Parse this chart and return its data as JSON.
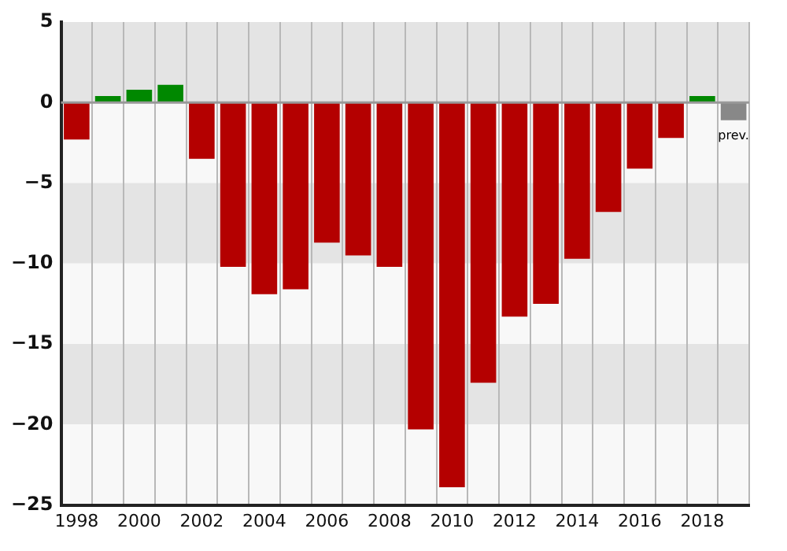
{
  "chart_data": {
    "type": "bar",
    "categories": [
      "1998",
      null,
      "2000",
      null,
      "2002",
      null,
      "2004",
      null,
      "2006",
      null,
      "2008",
      null,
      "2010",
      null,
      "2012",
      null,
      "2014",
      null,
      "2016",
      null,
      "2018",
      null
    ],
    "values": [
      -2.3,
      0.4,
      0.8,
      1.1,
      -3.5,
      -10.2,
      -11.9,
      -11.6,
      -8.7,
      -9.5,
      -10.2,
      -20.3,
      -23.9,
      -17.4,
      -13.3,
      -12.5,
      -9.7,
      -6.8,
      -4.1,
      -2.2,
      0.4,
      -1.1
    ],
    "colors": [
      "#b40000",
      "#008800",
      "#008800",
      "#008800",
      "#b40000",
      "#b40000",
      "#b40000",
      "#b40000",
      "#b40000",
      "#b40000",
      "#b40000",
      "#b40000",
      "#b40000",
      "#b40000",
      "#b40000",
      "#b40000",
      "#b40000",
      "#b40000",
      "#b40000",
      "#b40000",
      "#008800",
      "#888888"
    ],
    "ylim": [
      -25,
      5
    ],
    "yticks": [
      5,
      0,
      {
        "value": -5,
        "label": "−5"
      },
      {
        "value": -10,
        "label": "−10"
      },
      {
        "value": -15,
        "label": "−15"
      },
      {
        "value": -20,
        "label": "−20"
      },
      {
        "value": -25,
        "label": "−25"
      }
    ],
    "ref_lines": [
      {
        "axis": "y",
        "value": 0,
        "color": "#999999"
      }
    ],
    "annotations": [
      "prev."
    ],
    "grid": "x",
    "legend": false
  }
}
